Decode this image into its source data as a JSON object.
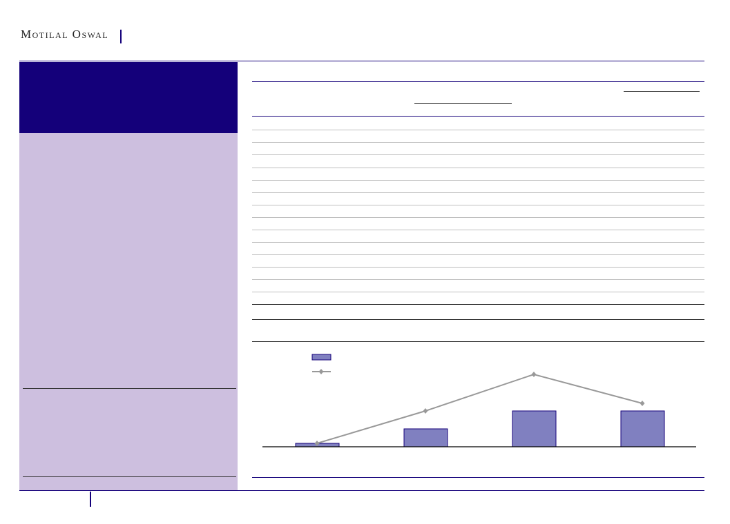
{
  "header": {
    "logo_text": "Motilal Oswal"
  },
  "colors": {
    "navy": "#14007a",
    "lavender": "#cdbfdf",
    "bar_fill": "#8080c0",
    "line": "#999999"
  },
  "chart_data": {
    "type": "bar+line",
    "title": "",
    "xlabel": "",
    "ylabel": "",
    "categories": [
      "",
      "",
      "",
      ""
    ],
    "series": [
      {
        "type": "bar",
        "values": [
          5,
          26,
          52,
          52
        ]
      },
      {
        "type": "line",
        "values": [
          5,
          52,
          105,
          63
        ]
      }
    ],
    "legend": "top-left",
    "grid": false
  }
}
